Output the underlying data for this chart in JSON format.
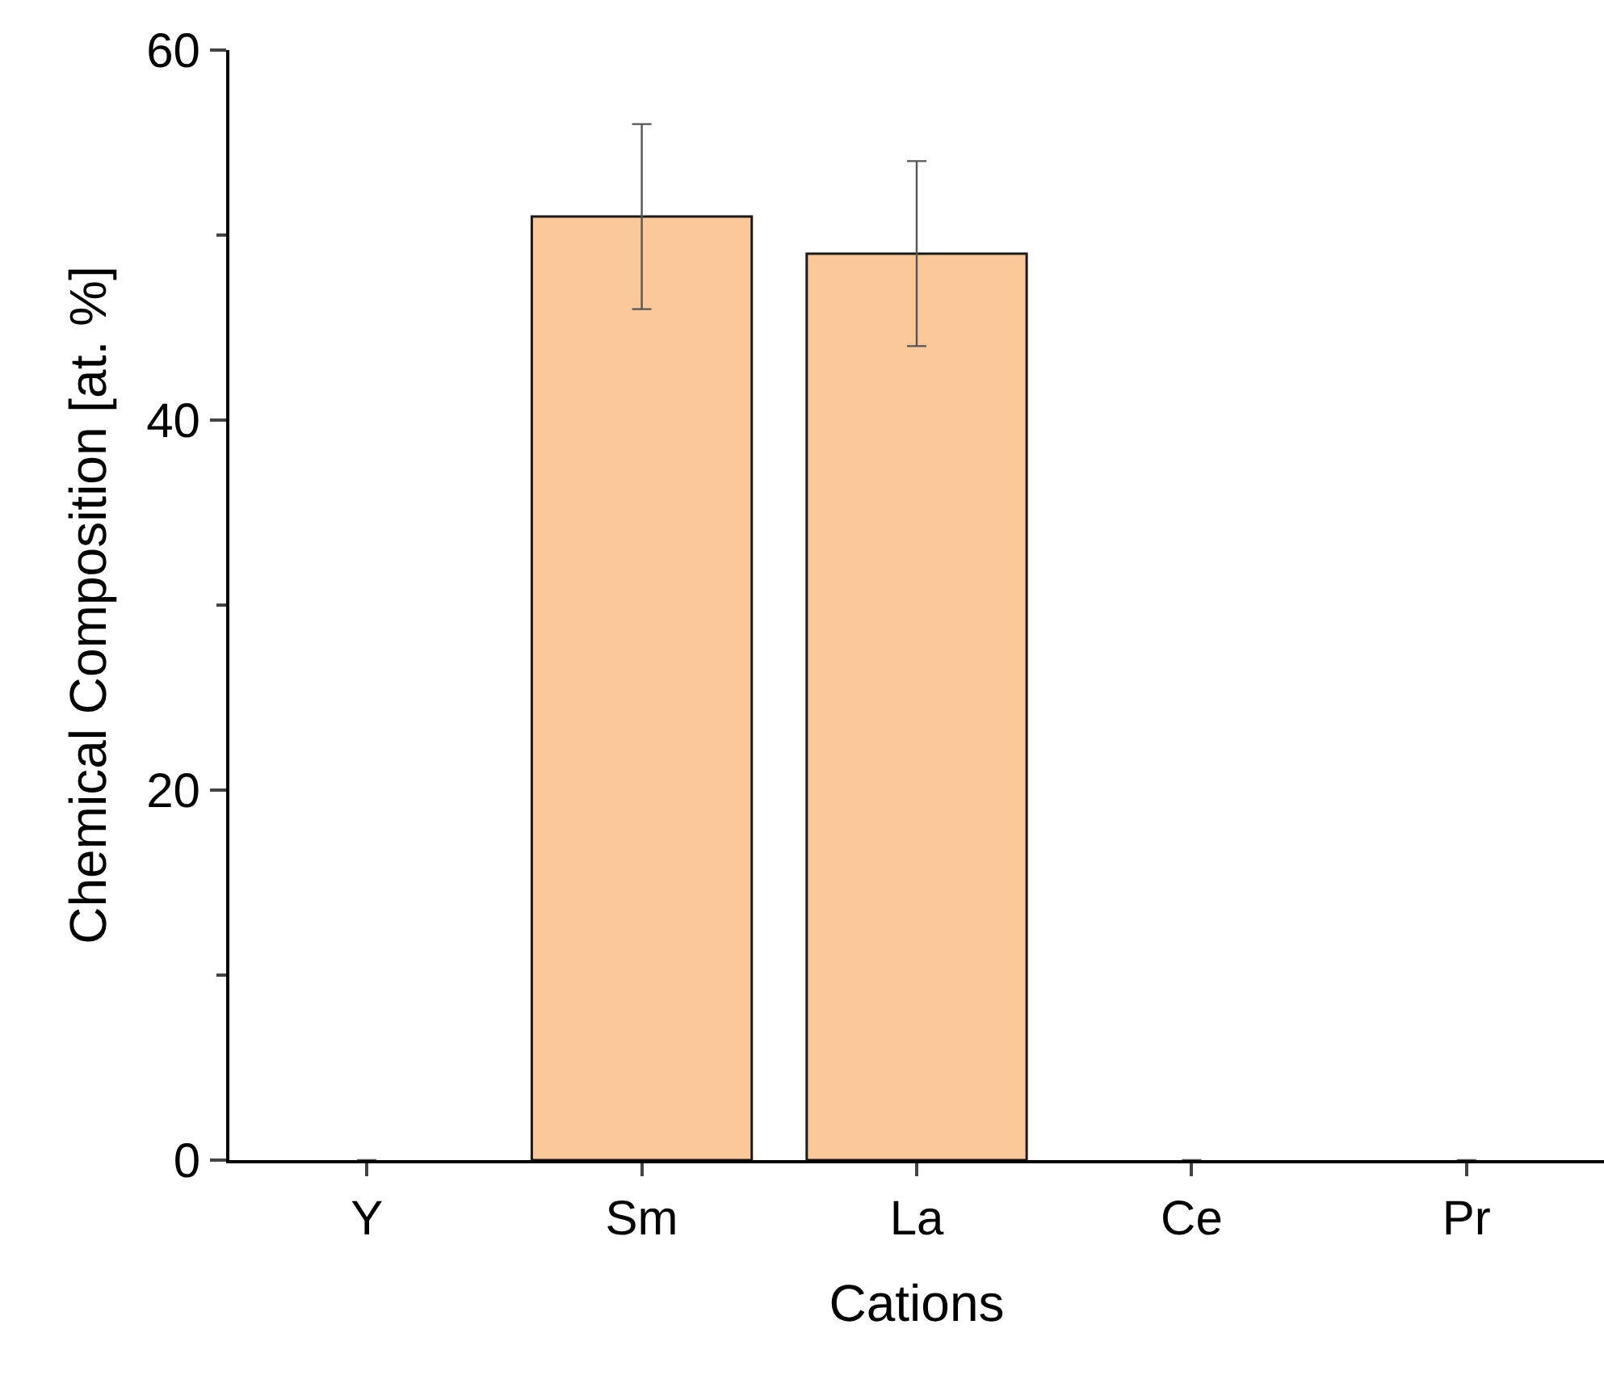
{
  "chart_data": {
    "type": "bar",
    "xlabel": "Cations",
    "ylabel": "Chemical Composition [at. %]",
    "categories": [
      "Y",
      "Sm",
      "La",
      "Ce",
      "Pr"
    ],
    "values": [
      0,
      51,
      49,
      0,
      0
    ],
    "errors": [
      null,
      5,
      5,
      null,
      null
    ],
    "color": "#fac899",
    "ylim": [
      0,
      60
    ],
    "yticks": [
      0,
      {
        "value": 10,
        "label": null
      },
      20,
      {
        "value": 30,
        "label": null
      },
      40,
      {
        "value": 50,
        "label": null
      },
      60
    ]
  }
}
